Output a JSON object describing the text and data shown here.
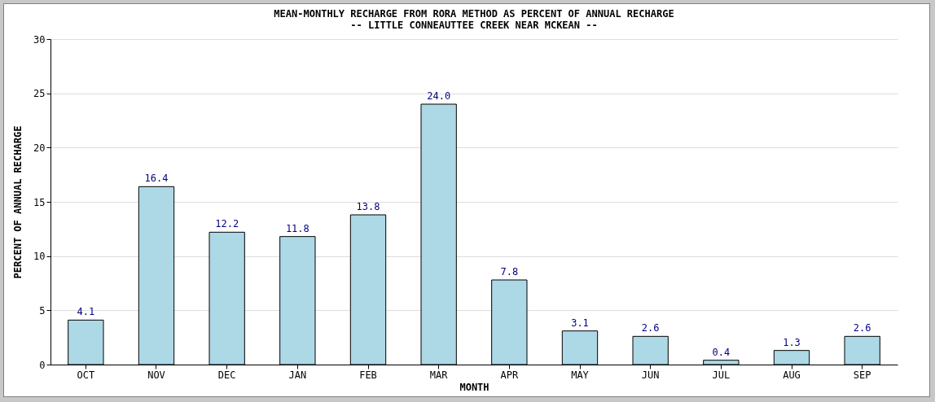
{
  "chart_data": {
    "type": "bar",
    "title": "MEAN-MONTHLY RECHARGE FROM RORA METHOD AS PERCENT OF ANNUAL RECHARGE",
    "subtitle": "-- LITTLE CONNEAUTTEE CREEK NEAR MCKEAN --",
    "xlabel": "MONTH",
    "ylabel": "PERCENT OF ANNUAL RECHARGE",
    "categories": [
      "OCT",
      "NOV",
      "DEC",
      "JAN",
      "FEB",
      "MAR",
      "APR",
      "MAY",
      "JUN",
      "JUL",
      "AUG",
      "SEP"
    ],
    "values": [
      4.1,
      16.4,
      12.2,
      11.8,
      13.8,
      24.0,
      7.8,
      3.1,
      2.6,
      0.4,
      1.3,
      2.6
    ],
    "value_labels": [
      "4.1",
      "16.4",
      "12.2",
      "11.8",
      "13.8",
      "24.0",
      "7.8",
      "3.1",
      "2.6",
      "0.4",
      "1.3",
      "2.6"
    ],
    "color": "#add8e6",
    "ylim": [
      0,
      30
    ],
    "yticks": [
      0,
      5,
      10,
      15,
      20,
      25,
      30
    ],
    "grid": "y"
  }
}
